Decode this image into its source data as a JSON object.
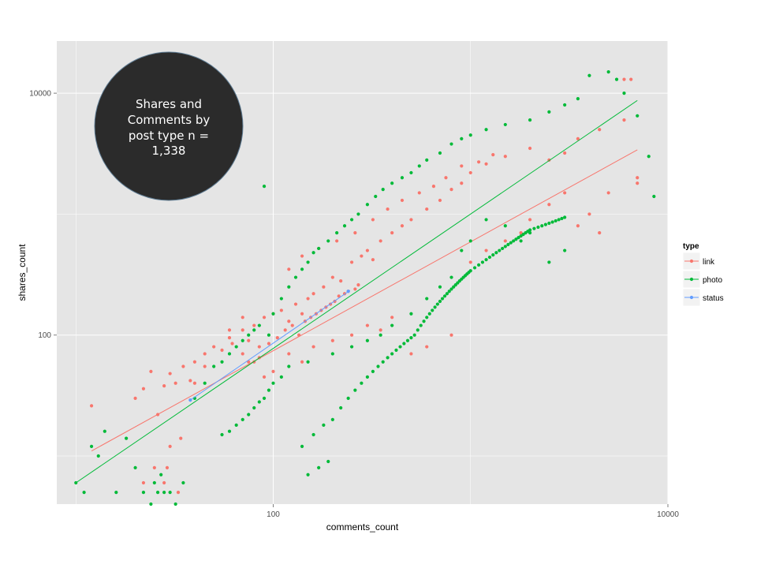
{
  "chart_data": {
    "type": "scatter",
    "x_scale": "log10",
    "y_scale": "log10",
    "xlim": [
      8,
      10000
    ],
    "ylim": [
      4,
      27000
    ],
    "x_ticks": [
      100,
      10000
    ],
    "x_tick_labels": [
      "100",
      "10000"
    ],
    "y_ticks": [
      100,
      10000
    ],
    "y_tick_labels": [
      "100",
      "10000"
    ],
    "xlabel": "comments_count",
    "ylabel": "shares_count",
    "grid": true,
    "legend_placement": "right",
    "legend_title": "type",
    "annotation_lines": [
      "Shares and",
      "Comments by",
      "post type n =",
      "1,338"
    ],
    "series": [
      {
        "name": "link",
        "color": "#F8766D",
        "trend": [
          [
            12,
            11
          ],
          [
            7000,
            3400
          ]
        ],
        "points": [
          [
            12,
            26
          ],
          [
            22,
            36
          ],
          [
            24,
            50
          ],
          [
            20,
            30
          ],
          [
            26,
            22
          ],
          [
            28,
            38
          ],
          [
            30,
            48
          ],
          [
            32,
            40
          ],
          [
            35,
            55
          ],
          [
            38,
            42
          ],
          [
            40,
            60
          ],
          [
            45,
            70
          ],
          [
            50,
            80
          ],
          [
            55,
            75
          ],
          [
            60,
            95
          ],
          [
            62,
            85
          ],
          [
            70,
            110
          ],
          [
            75,
            90
          ],
          [
            80,
            120
          ],
          [
            85,
            65
          ],
          [
            90,
            140
          ],
          [
            100,
            150
          ],
          [
            110,
            160
          ],
          [
            120,
            130
          ],
          [
            130,
            180
          ],
          [
            140,
            150
          ],
          [
            150,
            200
          ],
          [
            160,
            220
          ],
          [
            180,
            250
          ],
          [
            200,
            300
          ],
          [
            220,
            280
          ],
          [
            250,
            400
          ],
          [
            280,
            450
          ],
          [
            300,
            500
          ],
          [
            320,
            420
          ],
          [
            350,
            600
          ],
          [
            400,
            700
          ],
          [
            450,
            800
          ],
          [
            500,
            900
          ],
          [
            600,
            1100
          ],
          [
            700,
            1300
          ],
          [
            800,
            1600
          ],
          [
            900,
            1800
          ],
          [
            1000,
            2200
          ],
          [
            1200,
            2600
          ],
          [
            1500,
            3000
          ],
          [
            2000,
            3500
          ],
          [
            2500,
            2800
          ],
          [
            3000,
            3200
          ],
          [
            3500,
            4200
          ],
          [
            4500,
            5000
          ],
          [
            6000,
            13000
          ],
          [
            7000,
            2000
          ],
          [
            7000,
            1800
          ],
          [
            30,
            12
          ],
          [
            34,
            14
          ],
          [
            25,
            8
          ],
          [
            22,
            6
          ],
          [
            28,
            6
          ],
          [
            33,
            5
          ],
          [
            29,
            8
          ],
          [
            40,
            40
          ],
          [
            45,
            55
          ],
          [
            60,
            110
          ],
          [
            70,
            140
          ],
          [
            80,
            60
          ],
          [
            90,
            45
          ],
          [
            100,
            50
          ],
          [
            120,
            70
          ],
          [
            140,
            60
          ],
          [
            160,
            80
          ],
          [
            200,
            90
          ],
          [
            250,
            100
          ],
          [
            300,
            120
          ],
          [
            350,
            110
          ],
          [
            400,
            140
          ],
          [
            500,
            70
          ],
          [
            600,
            80
          ],
          [
            800,
            100
          ],
          [
            1000,
            400
          ],
          [
            1200,
            500
          ],
          [
            1500,
            600
          ],
          [
            1800,
            700
          ],
          [
            2000,
            900
          ],
          [
            2500,
            1200
          ],
          [
            3000,
            1500
          ],
          [
            3500,
            800
          ],
          [
            4000,
            1000
          ],
          [
            4500,
            700
          ],
          [
            5000,
            1500
          ],
          [
            6000,
            6000
          ],
          [
            6500,
            13000
          ],
          [
            120,
            350
          ],
          [
            140,
            450
          ],
          [
            170,
            520
          ],
          [
            210,
            600
          ],
          [
            260,
            700
          ],
          [
            320,
            900
          ],
          [
            380,
            1100
          ],
          [
            450,
            1300
          ],
          [
            550,
            1500
          ],
          [
            650,
            1700
          ],
          [
            750,
            2000
          ],
          [
            900,
            2500
          ],
          [
            1100,
            2700
          ],
          [
            1300,
            3100
          ],
          [
            70,
            70
          ],
          [
            75,
            60
          ],
          [
            85,
            80
          ],
          [
            95,
            85
          ],
          [
            105,
            95
          ],
          [
            115,
            110
          ],
          [
            125,
            120
          ],
          [
            135,
            100
          ],
          [
            145,
            130
          ],
          [
            155,
            140
          ],
          [
            165,
            150
          ],
          [
            175,
            160
          ],
          [
            185,
            170
          ],
          [
            195,
            180
          ],
          [
            205,
            190
          ],
          [
            215,
            210
          ],
          [
            230,
            220
          ],
          [
            240,
            230
          ],
          [
            260,
            240
          ],
          [
            270,
            260
          ]
        ]
      },
      {
        "name": "photo",
        "color": "#00BA38",
        "trend": [
          [
            10,
            6
          ],
          [
            7000,
            8700
          ]
        ],
        "points": [
          [
            10,
            6
          ],
          [
            11,
            5
          ],
          [
            12,
            12
          ],
          [
            13,
            10
          ],
          [
            14,
            16
          ],
          [
            16,
            5
          ],
          [
            18,
            14
          ],
          [
            20,
            8
          ],
          [
            22,
            5
          ],
          [
            24,
            4
          ],
          [
            25,
            6
          ],
          [
            26,
            5
          ],
          [
            27,
            7
          ],
          [
            28,
            5
          ],
          [
            30,
            5
          ],
          [
            32,
            4
          ],
          [
            35,
            6
          ],
          [
            40,
            30
          ],
          [
            45,
            40
          ],
          [
            50,
            55
          ],
          [
            55,
            60
          ],
          [
            60,
            70
          ],
          [
            65,
            80
          ],
          [
            70,
            90
          ],
          [
            75,
            100
          ],
          [
            80,
            110
          ],
          [
            85,
            120
          ],
          [
            90,
            1700
          ],
          [
            95,
            100
          ],
          [
            100,
            150
          ],
          [
            110,
            200
          ],
          [
            120,
            250
          ],
          [
            130,
            300
          ],
          [
            140,
            350
          ],
          [
            150,
            400
          ],
          [
            160,
            480
          ],
          [
            170,
            520
          ],
          [
            190,
            600
          ],
          [
            210,
            700
          ],
          [
            230,
            800
          ],
          [
            250,
            900
          ],
          [
            270,
            1000
          ],
          [
            300,
            1200
          ],
          [
            330,
            1400
          ],
          [
            360,
            1600
          ],
          [
            400,
            1800
          ],
          [
            450,
            2000
          ],
          [
            500,
            2200
          ],
          [
            550,
            2500
          ],
          [
            600,
            2800
          ],
          [
            700,
            3200
          ],
          [
            800,
            3800
          ],
          [
            900,
            4200
          ],
          [
            1000,
            4500
          ],
          [
            1200,
            5000
          ],
          [
            1500,
            5500
          ],
          [
            2000,
            6000
          ],
          [
            2500,
            7000
          ],
          [
            3000,
            8000
          ],
          [
            3500,
            9000
          ],
          [
            4000,
            14000
          ],
          [
            5000,
            15000
          ],
          [
            5500,
            13000
          ],
          [
            6000,
            10000
          ],
          [
            7000,
            6500
          ],
          [
            8000,
            3000
          ],
          [
            8500,
            1400
          ],
          [
            3000,
            500
          ],
          [
            2500,
            400
          ],
          [
            2000,
            700
          ],
          [
            1800,
            600
          ],
          [
            1500,
            800
          ],
          [
            1200,
            900
          ],
          [
            1000,
            600
          ],
          [
            900,
            500
          ],
          [
            800,
            300
          ],
          [
            700,
            250
          ],
          [
            600,
            200
          ],
          [
            500,
            150
          ],
          [
            400,
            120
          ],
          [
            350,
            100
          ],
          [
            300,
            90
          ],
          [
            250,
            80
          ],
          [
            200,
            70
          ],
          [
            150,
            60
          ],
          [
            120,
            55
          ],
          [
            110,
            45
          ],
          [
            100,
            40
          ],
          [
            95,
            35
          ],
          [
            90,
            30
          ],
          [
            85,
            28
          ],
          [
            80,
            25
          ],
          [
            75,
            22
          ],
          [
            70,
            20
          ],
          [
            65,
            18
          ],
          [
            60,
            16
          ],
          [
            55,
            15
          ],
          [
            150,
            7
          ],
          [
            170,
            8
          ],
          [
            190,
            9
          ],
          [
            140,
            12
          ],
          [
            160,
            15
          ],
          [
            180,
            18
          ],
          [
            200,
            20
          ],
          [
            220,
            25
          ],
          [
            240,
            30
          ],
          [
            260,
            35
          ],
          [
            280,
            40
          ],
          [
            300,
            45
          ],
          [
            320,
            50
          ],
          [
            340,
            55
          ],
          [
            360,
            60
          ],
          [
            380,
            65
          ],
          [
            400,
            70
          ],
          [
            420,
            75
          ],
          [
            440,
            80
          ],
          [
            460,
            85
          ],
          [
            480,
            90
          ],
          [
            500,
            95
          ],
          [
            520,
            100
          ],
          [
            540,
            110
          ],
          [
            560,
            120
          ],
          [
            580,
            130
          ],
          [
            600,
            140
          ],
          [
            620,
            150
          ],
          [
            640,
            160
          ],
          [
            660,
            170
          ],
          [
            680,
            180
          ],
          [
            700,
            190
          ],
          [
            720,
            200
          ],
          [
            740,
            210
          ],
          [
            760,
            220
          ],
          [
            780,
            230
          ],
          [
            800,
            240
          ],
          [
            820,
            250
          ],
          [
            840,
            260
          ],
          [
            860,
            270
          ],
          [
            880,
            280
          ],
          [
            900,
            290
          ],
          [
            920,
            300
          ],
          [
            940,
            310
          ],
          [
            960,
            320
          ],
          [
            980,
            330
          ],
          [
            1000,
            340
          ],
          [
            1050,
            360
          ],
          [
            1100,
            380
          ],
          [
            1150,
            400
          ],
          [
            1200,
            420
          ],
          [
            1250,
            440
          ],
          [
            1300,
            460
          ],
          [
            1350,
            480
          ],
          [
            1400,
            500
          ],
          [
            1450,
            520
          ],
          [
            1500,
            540
          ],
          [
            1550,
            560
          ],
          [
            1600,
            580
          ],
          [
            1650,
            600
          ],
          [
            1700,
            620
          ],
          [
            1750,
            640
          ],
          [
            1800,
            660
          ],
          [
            1850,
            680
          ],
          [
            1900,
            700
          ],
          [
            1950,
            720
          ],
          [
            2000,
            740
          ],
          [
            2100,
            760
          ],
          [
            2200,
            780
          ],
          [
            2300,
            800
          ],
          [
            2400,
            820
          ],
          [
            2500,
            840
          ],
          [
            2600,
            860
          ],
          [
            2700,
            880
          ],
          [
            2800,
            900
          ],
          [
            2900,
            920
          ],
          [
            3000,
            940
          ]
        ]
      },
      {
        "name": "status",
        "color": "#619CFF",
        "trend": [
          [
            38,
            29
          ],
          [
            245,
            234
          ]
        ],
        "points": [
          [
            38,
            29
          ],
          [
            240,
            230
          ]
        ]
      }
    ]
  }
}
